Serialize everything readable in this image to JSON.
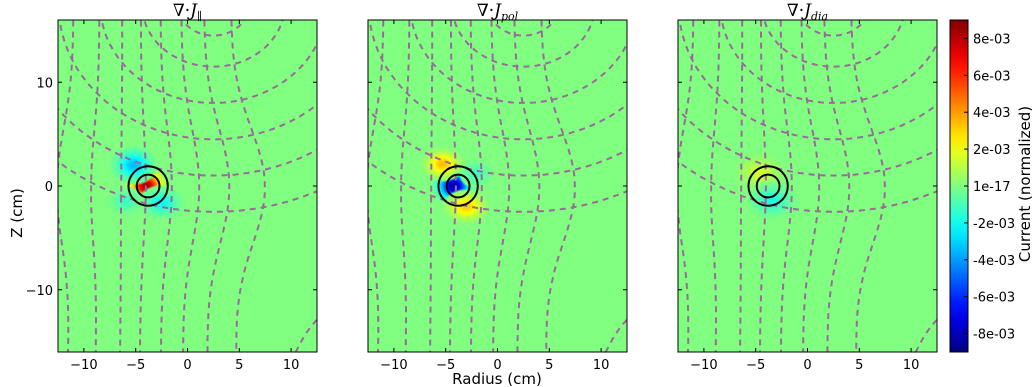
{
  "chart_data": {
    "type": "heatmap",
    "panels": [
      {
        "title": "∇·J∥",
        "title_math": {
          "op": "∇·",
          "var": "J",
          "sub": "∥",
          "sub_italic": false
        },
        "blobs": [
          {
            "x": -4.0,
            "y": 0.0,
            "sx": 1.0,
            "sy": 0.9,
            "value": 0.0085
          },
          {
            "x": -5.2,
            "y": 2.0,
            "sx": 1.1,
            "sy": 0.9,
            "value": -0.0035
          },
          {
            "x": -2.5,
            "y": -1.6,
            "sx": 1.1,
            "sy": 0.8,
            "value": -0.0022
          },
          {
            "x": -6.0,
            "y": -1.5,
            "sx": 0.9,
            "sy": 0.7,
            "value": -0.0012
          }
        ]
      },
      {
        "title": "∇·Jpol",
        "title_math": {
          "op": "∇·",
          "var": "J",
          "sub": "pol",
          "sub_italic": true
        },
        "blobs": [
          {
            "x": -4.2,
            "y": 0.0,
            "sx": 1.0,
            "sy": 0.9,
            "value": -0.0085
          },
          {
            "x": -5.3,
            "y": 2.1,
            "sx": 1.0,
            "sy": 0.8,
            "value": 0.0035
          },
          {
            "x": -3.0,
            "y": -2.0,
            "sx": 1.1,
            "sy": 0.8,
            "value": 0.0032
          },
          {
            "x": -2.0,
            "y": 1.2,
            "sx": 0.8,
            "sy": 0.7,
            "value": -0.0012
          }
        ]
      },
      {
        "title": "∇·Jdia",
        "title_math": {
          "op": "∇·",
          "var": "J",
          "sub": "dia",
          "sub_italic": true
        },
        "blobs": [
          {
            "x": -4.6,
            "y": 1.3,
            "sx": 1.2,
            "sy": 0.9,
            "value": 0.0016
          },
          {
            "x": -3.4,
            "y": -1.4,
            "sx": 1.2,
            "sy": 0.9,
            "value": -0.0018
          }
        ]
      }
    ],
    "x": {
      "label": "Radius (cm)",
      "range": [
        -12.5,
        12.5
      ],
      "ticks": [
        -10,
        -5,
        0,
        5,
        10
      ],
      "tick_labels": [
        "−10",
        "−5",
        "0",
        "5",
        "10"
      ]
    },
    "y": {
      "label": "Z (cm)",
      "range": [
        -16,
        16
      ],
      "ticks": [
        -10,
        0,
        10
      ],
      "tick_labels": [
        "−10",
        "0",
        "10"
      ]
    },
    "colorbar": {
      "label": "Current (normalized)",
      "colormap": "jet",
      "range": [
        -0.009,
        0.009
      ],
      "ticks": [
        -0.008,
        -0.006,
        -0.004,
        -0.002,
        0.0,
        0.002,
        0.004,
        0.006,
        0.008
      ],
      "tick_labels": [
        "-8e-03",
        "-6e-03",
        "-4e-03",
        "-2e-03",
        "1e-17",
        "2e-03",
        "4e-03",
        "6e-03",
        "8e-03"
      ]
    },
    "circles": [
      {
        "x": -3.8,
        "y": 0.0,
        "r": 1.9
      },
      {
        "x": -3.8,
        "y": 0.0,
        "r": 1.1
      }
    ],
    "field_lines": {
      "style": "dashed",
      "color": "#9a6a9a"
    },
    "colors": {
      "background": "#80ff78",
      "circle": "#000000",
      "field_line": "#9a6a9a"
    }
  }
}
